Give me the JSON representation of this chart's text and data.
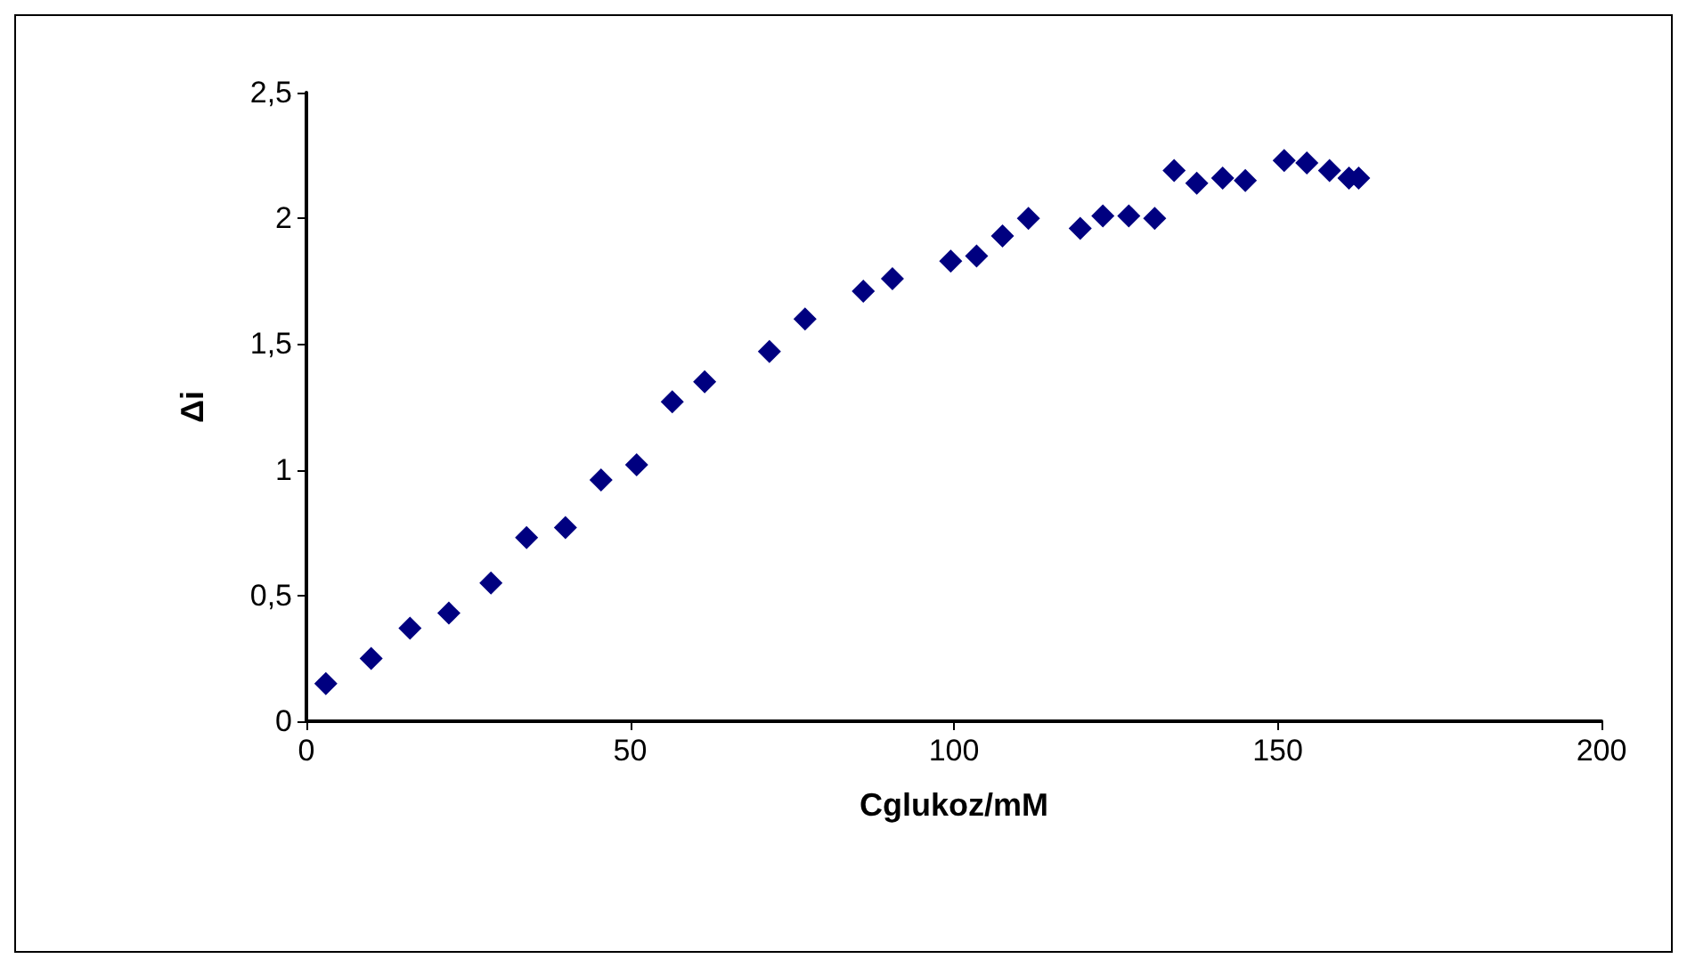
{
  "chart_data": {
    "type": "scatter",
    "xlabel": "Cglukoz/mM",
    "ylabel": "Δi",
    "x": [
      3,
      10,
      16,
      22,
      28.5,
      34,
      40,
      45.5,
      51,
      56.5,
      61.5,
      71.5,
      77,
      86,
      90.5,
      99.5,
      103.5,
      107.5,
      111.5,
      119.5,
      123,
      127,
      131,
      134,
      137.5,
      141.5,
      145,
      151,
      154.5,
      158,
      161,
      162.5
    ],
    "series": [
      {
        "color": "#000080",
        "values": [
          0.15,
          0.25,
          0.37,
          0.43,
          0.55,
          0.73,
          0.77,
          0.96,
          1.02,
          1.27,
          1.35,
          1.47,
          1.6,
          1.71,
          1.76,
          1.83,
          1.85,
          1.93,
          2.0,
          1.96,
          2.01,
          2.01,
          2.0,
          2.19,
          2.14,
          2.16,
          2.15,
          2.23,
          2.22,
          2.19,
          2.16,
          2.16
        ]
      }
    ],
    "xlim": [
      0,
      200
    ],
    "xticks": [
      0,
      50,
      100,
      150,
      200
    ],
    "ylim": [
      0,
      2.5
    ],
    "yticks": [
      0,
      {
        "value": 0.5,
        "label": "0,5"
      },
      1,
      {
        "value": 1.5,
        "label": "1,5"
      },
      2,
      {
        "value": 2.5,
        "label": "2,5"
      }
    ],
    "marker": "diamond",
    "grid": false
  }
}
